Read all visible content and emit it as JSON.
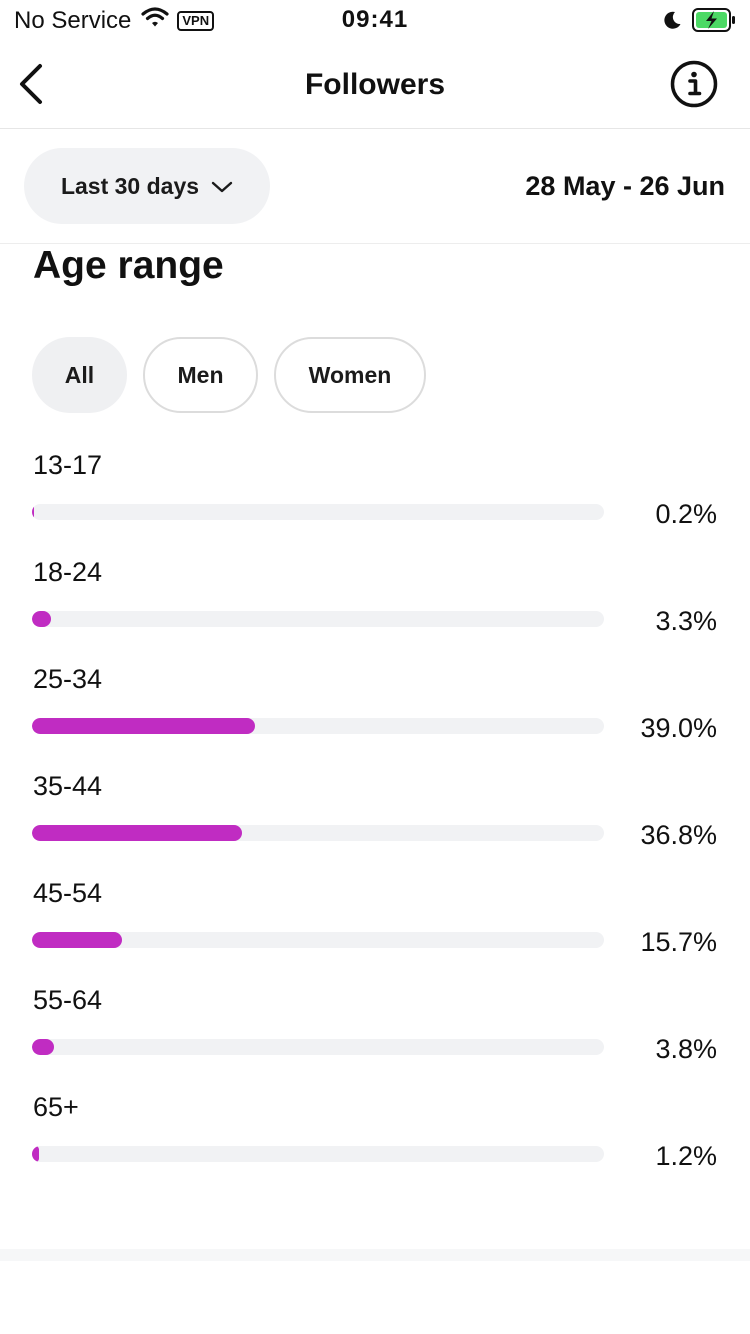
{
  "status_bar": {
    "carrier": "No Service",
    "vpn": "VPN",
    "time": "09:41"
  },
  "nav": {
    "title": "Followers"
  },
  "filter": {
    "period": "Last 30 days",
    "date_range": "28 May - 26 Jun"
  },
  "section": {
    "title": "Age range",
    "segments": [
      "All",
      "Men",
      "Women"
    ],
    "selected_segment": "All"
  },
  "colors": {
    "accent": "#c02cc2",
    "track": "#f1f2f4"
  },
  "age_ranges": [
    {
      "label": "13-17",
      "percent": 0.2,
      "percent_text": "0.2%"
    },
    {
      "label": "18-24",
      "percent": 3.3,
      "percent_text": "3.3%"
    },
    {
      "label": "25-34",
      "percent": 39.0,
      "percent_text": "39.0%"
    },
    {
      "label": "35-44",
      "percent": 36.8,
      "percent_text": "36.8%"
    },
    {
      "label": "45-54",
      "percent": 15.7,
      "percent_text": "15.7%"
    },
    {
      "label": "55-64",
      "percent": 3.8,
      "percent_text": "3.8%"
    },
    {
      "label": "65+",
      "percent": 1.2,
      "percent_text": "1.2%"
    }
  ]
}
